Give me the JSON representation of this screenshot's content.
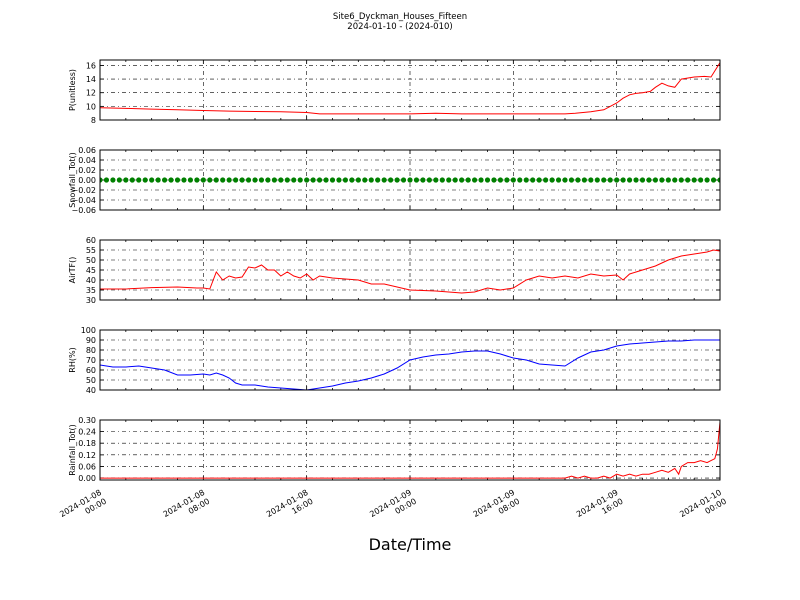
{
  "figure": {
    "title_line1": "Site6_Dyckman_Houses_Fifteen",
    "title_line2": "2024-01-10 - (2024-010)",
    "xlabel": "Date/Time"
  },
  "chart_data": [
    {
      "type": "line",
      "ylabel": "P(unitless)",
      "ylim": [
        8,
        16.8
      ],
      "yticks": [
        "8",
        "10",
        "12",
        "14",
        "16"
      ],
      "ytick_values": [
        8,
        10,
        12,
        14,
        16
      ],
      "xlim_hours": [
        0,
        48
      ],
      "grid": true,
      "series": [
        {
          "color": "#ff0000",
          "x": [
            0,
            2,
            4,
            6,
            8,
            10,
            12,
            14,
            16,
            17,
            20,
            24,
            26,
            28,
            32,
            34,
            36,
            36.8,
            38,
            39,
            40,
            40.5,
            41,
            41.5,
            42,
            42.6,
            43,
            43.5,
            44,
            44.5,
            45,
            46,
            46.8,
            47.3,
            47.7,
            48
          ],
          "y": [
            9.8,
            9.7,
            9.6,
            9.5,
            9.4,
            9.3,
            9.25,
            9.2,
            9.1,
            8.9,
            8.9,
            8.9,
            9.0,
            8.9,
            8.9,
            8.9,
            8.9,
            9.0,
            9.2,
            9.5,
            10.5,
            11.2,
            11.7,
            11.9,
            12.0,
            12.2,
            12.8,
            13.4,
            13.0,
            12.8,
            14.0,
            14.3,
            14.4,
            14.3,
            15.5,
            16.4
          ]
        }
      ]
    },
    {
      "type": "scatter",
      "ylabel": "Snowfall_Tot()",
      "ylim": [
        -0.06,
        0.06
      ],
      "yticks": [
        "−0.06",
        "−0.04",
        "−0.02",
        "0.00",
        "0.02",
        "0.04",
        "0.06"
      ],
      "ytick_values": [
        -0.06,
        -0.04,
        -0.02,
        0,
        0.02,
        0.04,
        0.06
      ],
      "xlim_hours": [
        0,
        48
      ],
      "grid": true,
      "series": [
        {
          "color": "#008000",
          "constant_y": 0.0,
          "x_start": 0,
          "x_end": 48,
          "point_count": 97
        }
      ]
    },
    {
      "type": "line",
      "ylabel": "AirTF()",
      "ylim": [
        30,
        60
      ],
      "yticks": [
        "30",
        "35",
        "40",
        "45",
        "50",
        "55",
        "60"
      ],
      "ytick_values": [
        30,
        35,
        40,
        45,
        50,
        55,
        60
      ],
      "xlim_hours": [
        0,
        48
      ],
      "grid": true,
      "series": [
        {
          "color": "#ff0000",
          "x": [
            0,
            2,
            4,
            6,
            7.5,
            8,
            8.5,
            9,
            9.5,
            10,
            10.5,
            11,
            11.5,
            12,
            12.5,
            13,
            13.5,
            14,
            14.5,
            15,
            15.5,
            16,
            16.5,
            17,
            18,
            20,
            21,
            22,
            24,
            26,
            28,
            29,
            30,
            31,
            32,
            33,
            34,
            35,
            36,
            37,
            38,
            39,
            40,
            40.5,
            41,
            42,
            43,
            44,
            45,
            46,
            47,
            47.5,
            48
          ],
          "y": [
            35.5,
            35.5,
            36.2,
            36.5,
            36,
            36,
            35.5,
            44,
            40,
            42,
            41,
            41.5,
            46.5,
            46,
            47.5,
            45,
            45,
            42,
            44,
            42,
            41,
            43,
            40,
            42,
            41,
            40,
            38,
            38,
            35,
            34.5,
            33.5,
            34,
            36,
            35,
            36,
            40,
            42,
            41,
            42,
            41,
            43,
            42,
            42.5,
            40,
            43,
            45,
            47,
            50,
            52,
            53,
            54,
            55,
            54.5
          ]
        }
      ]
    },
    {
      "type": "line",
      "ylabel": "RH(%)",
      "ylim": [
        40,
        100
      ],
      "yticks": [
        "40",
        "50",
        "60",
        "70",
        "80",
        "90",
        "100"
      ],
      "ytick_values": [
        40,
        50,
        60,
        70,
        80,
        90,
        100
      ],
      "xlim_hours": [
        0,
        48
      ],
      "grid": true,
      "series": [
        {
          "color": "#0000ff",
          "x": [
            0,
            1,
            2,
            3,
            4,
            4.5,
            5,
            6,
            7,
            8,
            8.5,
            9,
            9.5,
            10,
            10.5,
            11,
            12,
            13,
            14,
            15,
            16,
            17,
            18,
            19,
            20,
            21,
            22,
            23,
            24,
            25,
            26,
            27,
            28,
            29,
            30,
            31,
            32,
            33,
            34,
            35,
            36,
            37,
            38,
            39,
            40,
            41,
            42,
            43,
            44,
            45,
            46,
            47,
            48
          ],
          "y": [
            65,
            63,
            63,
            64,
            62,
            61,
            60,
            55,
            55,
            56,
            55,
            57,
            55,
            52,
            47,
            45,
            45,
            43,
            42,
            41,
            40,
            42,
            44,
            47,
            49,
            52,
            56,
            62,
            70,
            73,
            75,
            76,
            78,
            79,
            79,
            76,
            72,
            70,
            66,
            65,
            64,
            72,
            78,
            80,
            84,
            86,
            87,
            88,
            89,
            89,
            90,
            90,
            90
          ]
        }
      ]
    },
    {
      "type": "line",
      "ylabel": "Rainfall_Tot()",
      "ylim": [
        -0.01,
        0.3
      ],
      "yticks": [
        "0.00",
        "0.06",
        "0.12",
        "0.18",
        "0.24",
        "0.30"
      ],
      "ytick_values": [
        0,
        0.06,
        0.12,
        0.18,
        0.24,
        0.3
      ],
      "xlim_hours": [
        0,
        48
      ],
      "grid": true,
      "series": [
        {
          "color": "#ff0000",
          "x": [
            0,
            36,
            36.5,
            37,
            37.5,
            38,
            38.5,
            39,
            39.5,
            40,
            40.5,
            41,
            41.5,
            42,
            42.5,
            43,
            43.5,
            44,
            44.5,
            44.8,
            45,
            45.5,
            46,
            46.5,
            47,
            47.3,
            47.6,
            47.8,
            48
          ],
          "y": [
            0,
            0,
            0.01,
            0.0,
            0.01,
            0.0,
            0.0,
            0.01,
            0.0,
            0.02,
            0.01,
            0.02,
            0.01,
            0.02,
            0.02,
            0.03,
            0.04,
            0.03,
            0.05,
            0.02,
            0.06,
            0.08,
            0.08,
            0.09,
            0.08,
            0.09,
            0.1,
            0.15,
            0.29
          ]
        }
      ]
    }
  ],
  "x_axis": {
    "ticks_hours": [
      0,
      8,
      16,
      24,
      32,
      40,
      48
    ],
    "tick_labels": [
      [
        "2024-01-08",
        "00:00"
      ],
      [
        "2024-01-08",
        "08:00"
      ],
      [
        "2024-01-08",
        "16:00"
      ],
      [
        "2024-01-09",
        "00:00"
      ],
      [
        "2024-01-09",
        "08:00"
      ],
      [
        "2024-01-09",
        "16:00"
      ],
      [
        "2024-01-10",
        "00:00"
      ]
    ]
  }
}
